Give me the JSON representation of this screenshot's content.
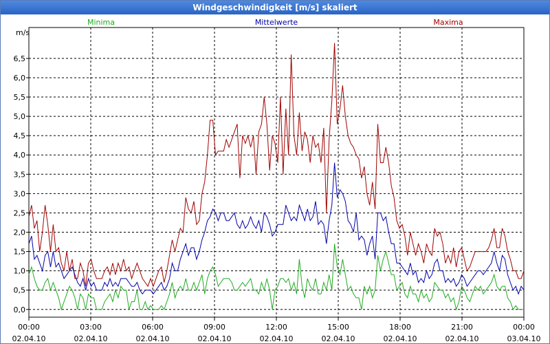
{
  "window": {
    "title": "Windgeschwindigkeit [m/s] skaliert"
  },
  "chart_data": {
    "type": "line",
    "title": "Windgeschwindigkeit [m/s] skaliert",
    "ylabel": "m/s",
    "xlabel": "",
    "ylim": [
      -0.2,
      7.3
    ],
    "xlim": [
      0,
      24
    ],
    "grid": true,
    "yticks": [
      "0,0",
      "0,5",
      "1,0",
      "1,5",
      "2,0",
      "2,5",
      "3,0",
      "3,5",
      "4,0",
      "4,5",
      "5,0",
      "5,5",
      "6,0",
      "6,5"
    ],
    "xticks": [
      {
        "time": "00:00",
        "date": "02.04.10"
      },
      {
        "time": "03:00",
        "date": "02.04.10"
      },
      {
        "time": "06:00",
        "date": "02.04.10"
      },
      {
        "time": "09:00",
        "date": "02.04.10"
      },
      {
        "time": "12:00",
        "date": "02.04.10"
      },
      {
        "time": "15:00",
        "date": "02.04.10"
      },
      {
        "time": "18:00",
        "date": "02.04.10"
      },
      {
        "time": "21:00",
        "date": "02.04.10"
      },
      {
        "time": "00:00",
        "date": "03.04.10"
      }
    ],
    "legend": {
      "placement": "top",
      "labels": {
        "min": "Minima",
        "mean": "Mittelwerte",
        "max": "Maxima"
      }
    },
    "colors": {
      "min": "#1faa1f",
      "mean": "#0000aa",
      "max": "#a00000"
    },
    "series": [
      {
        "name": "Maxima",
        "key": "max",
        "values": [
          2.4,
          2.7,
          2.1,
          2.3,
          1.5,
          2.0,
          2.7,
          2.2,
          1.5,
          2.2,
          1.5,
          1.6,
          1.2,
          1.0,
          1.5,
          1.0,
          1.3,
          0.8,
          0.8,
          1.2,
          1.0,
          0.6,
          1.2,
          1.3,
          1.0,
          0.8,
          0.8,
          0.8,
          1.0,
          1.1,
          0.9,
          1.2,
          0.9,
          1.2,
          1.0,
          1.3,
          1.0,
          1.1,
          0.8,
          1.0,
          1.2,
          1.0,
          0.8,
          0.7,
          0.6,
          0.8,
          0.6,
          0.8,
          1.0,
          1.1,
          0.7,
          1.0,
          1.4,
          1.8,
          1.5,
          1.8,
          2.1,
          2.0,
          2.9,
          2.6,
          2.5,
          2.8,
          2.2,
          2.3,
          3.0,
          3.3,
          4.0,
          4.9,
          4.9,
          4.0,
          4.1,
          4.1,
          4.1,
          4.4,
          4.2,
          4.4,
          4.6,
          4.8,
          3.4,
          4.5,
          4.3,
          4.5,
          4.2,
          4.5,
          3.5,
          4.6,
          4.8,
          5.5,
          4.8,
          3.6,
          4.5,
          4.3,
          3.8,
          5.5,
          3.5,
          5.2,
          4.0,
          6.6,
          4.5,
          4.0,
          5.1,
          4.1,
          4.6,
          4.4,
          3.8,
          4.5,
          4.2,
          4.3,
          3.8,
          4.7,
          2.5,
          4.4,
          5.4,
          6.9,
          4.8,
          5.2,
          5.8,
          5.0,
          4.5,
          4.3,
          4.2,
          4.0,
          3.9,
          3.4,
          3.7,
          3.0,
          2.7,
          3.3,
          2.6,
          4.8,
          3.8,
          3.8,
          4.2,
          3.8,
          3.2,
          2.9,
          2.3,
          2.1,
          2.2,
          1.9,
          1.4,
          2.0,
          1.7,
          1.4,
          1.7,
          1.5,
          1.2,
          1.7,
          1.5,
          1.4,
          2.1,
          1.9,
          2.0,
          1.7,
          1.2,
          1.4,
          1.2,
          1.6,
          1.1,
          1.5,
          1.6,
          1.3,
          1.0,
          1.1,
          1.3,
          1.5,
          1.5,
          1.5,
          1.5,
          1.5,
          1.6,
          1.8,
          2.1,
          1.6,
          1.6,
          2.1,
          1.9,
          1.5,
          1.3,
          1.0,
          1.0,
          0.8,
          0.8,
          1.0
        ]
      },
      {
        "name": "Mittelwerte",
        "key": "mean",
        "values": [
          1.7,
          1.9,
          1.3,
          1.4,
          1.2,
          1.0,
          1.4,
          1.5,
          1.1,
          1.5,
          1.1,
          1.2,
          1.0,
          0.8,
          0.9,
          1.0,
          1.1,
          0.9,
          0.7,
          0.6,
          0.8,
          0.5,
          0.8,
          0.6,
          0.7,
          0.5,
          0.5,
          0.5,
          0.7,
          0.6,
          0.8,
          0.6,
          0.7,
          0.6,
          0.8,
          0.8,
          0.8,
          0.7,
          0.6,
          0.6,
          0.7,
          0.5,
          0.4,
          0.5,
          0.5,
          0.5,
          0.4,
          0.5,
          0.6,
          0.7,
          0.5,
          0.6,
          0.8,
          1.2,
          1.0,
          1.0,
          1.3,
          1.5,
          1.7,
          1.4,
          1.6,
          1.6,
          1.3,
          1.5,
          1.8,
          2.0,
          2.3,
          2.4,
          2.6,
          2.5,
          2.3,
          2.5,
          2.5,
          2.3,
          2.3,
          2.4,
          2.5,
          2.2,
          2.1,
          2.3,
          2.1,
          2.2,
          2.4,
          2.2,
          2.1,
          2.3,
          2.0,
          2.5,
          2.4,
          2.2,
          1.9,
          2.0,
          2.2,
          2.2,
          2.2,
          2.7,
          2.5,
          2.3,
          2.4,
          2.3,
          2.7,
          2.5,
          2.3,
          2.6,
          2.3,
          2.4,
          2.8,
          2.2,
          2.3,
          2.2,
          1.7,
          2.3,
          2.7,
          3.8,
          2.9,
          3.1,
          3.0,
          2.8,
          2.3,
          2.2,
          2.0,
          2.5,
          1.8,
          1.9,
          1.8,
          1.4,
          1.7,
          1.9,
          1.3,
          2.5,
          2.5,
          2.3,
          2.4,
          2.0,
          1.7,
          1.7,
          1.2,
          1.2,
          1.1,
          1.0,
          0.9,
          1.2,
          0.9,
          1.0,
          0.7,
          0.8,
          0.7,
          1.0,
          0.8,
          0.9,
          1.2,
          1.3,
          1.0,
          1.0,
          0.7,
          0.8,
          0.7,
          0.8,
          0.6,
          0.7,
          0.9,
          0.8,
          0.6,
          0.7,
          0.8,
          0.9,
          1.0,
          1.0,
          0.9,
          1.0,
          1.1,
          1.2,
          1.5,
          1.2,
          1.0,
          1.4,
          1.3,
          0.9,
          0.7,
          0.5,
          0.6,
          0.4,
          0.6,
          0.5
        ]
      },
      {
        "name": "Minima",
        "key": "min",
        "values": [
          0.9,
          1.1,
          0.8,
          0.6,
          0.5,
          0.5,
          0.7,
          0.8,
          0.5,
          0.7,
          0.5,
          0.3,
          0.0,
          0.2,
          0.4,
          0.6,
          0.5,
          0.3,
          0.0,
          0.4,
          0.3,
          0.0,
          0.4,
          0.3,
          0.3,
          0.0,
          0.0,
          0.0,
          0.2,
          0.3,
          0.4,
          0.2,
          0.5,
          0.3,
          0.6,
          0.5,
          0.5,
          0.0,
          0.2,
          0.2,
          0.5,
          0.0,
          0.0,
          0.2,
          0.0,
          0.1,
          0.0,
          0.0,
          0.0,
          0.1,
          0.0,
          0.2,
          0.4,
          0.7,
          0.3,
          0.5,
          0.6,
          0.5,
          0.8,
          0.5,
          0.5,
          0.7,
          0.5,
          0.7,
          0.9,
          0.4,
          0.8,
          1.0,
          1.1,
          0.9,
          0.6,
          0.7,
          0.8,
          0.8,
          0.8,
          0.7,
          0.5,
          0.5,
          0.6,
          0.7,
          0.6,
          0.7,
          0.8,
          0.5,
          0.5,
          0.4,
          0.7,
          0.5,
          0.8,
          0.5,
          0.0,
          0.5,
          0.6,
          0.8,
          0.8,
          0.7,
          0.8,
          0.5,
          0.7,
          0.4,
          1.3,
          0.6,
          0.3,
          0.8,
          0.6,
          0.5,
          0.8,
          0.4,
          0.4,
          0.7,
          0.5,
          0.9,
          0.5,
          1.7,
          1.1,
          0.9,
          1.3,
          0.9,
          0.5,
          0.6,
          0.4,
          0.3,
          0.3,
          0.0,
          0.6,
          0.4,
          0.6,
          0.3,
          0.5,
          1.4,
          1.0,
          1.3,
          1.5,
          1.2,
          0.9,
          0.9,
          0.5,
          0.6,
          0.7,
          0.4,
          0.3,
          0.6,
          0.4,
          0.4,
          0.2,
          0.5,
          0.3,
          0.4,
          0.2,
          0.3,
          0.7,
          0.6,
          0.5,
          0.5,
          0.3,
          0.4,
          0.2,
          0.3,
          0.0,
          0.2,
          0.6,
          0.5,
          0.3,
          0.2,
          0.4,
          0.6,
          0.5,
          0.6,
          0.4,
          0.5,
          0.6,
          0.7,
          0.9,
          0.6,
          0.5,
          0.6,
          0.6,
          0.3,
          0.2,
          0.0,
          0.1,
          0.0,
          0.0,
          0.0
        ]
      }
    ]
  }
}
